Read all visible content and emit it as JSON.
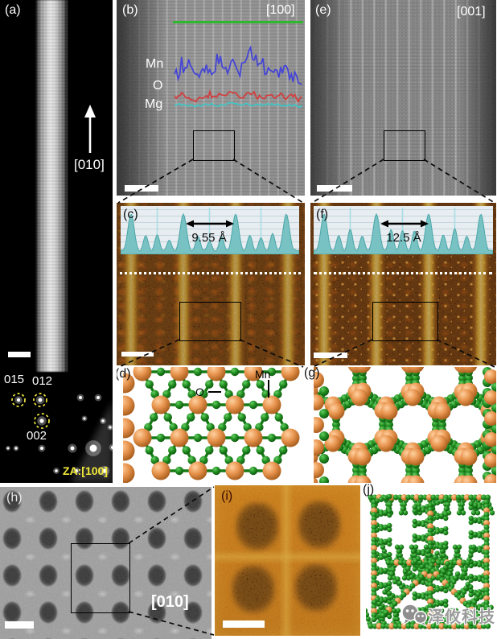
{
  "panels": {
    "a": {
      "label": "(a)",
      "growth_axis": "[010]",
      "diffraction": {
        "spot1": "015",
        "spot2": "012",
        "spot3": "002",
        "zone_axis": "ZA:[100]"
      }
    },
    "b": {
      "label": "(b)",
      "axis": "[100]",
      "traces": [
        {
          "label": "Mn",
          "color": "#4343d8"
        },
        {
          "label": "O",
          "color": "#d43b3b"
        },
        {
          "label": "Mg",
          "color": "#3fc6c6"
        }
      ]
    },
    "c": {
      "label": "(c)",
      "spacing": "9.55 Å"
    },
    "d": {
      "label": "(d)",
      "mn_label": "Mn",
      "o_label": "O"
    },
    "e": {
      "label": "(e)",
      "axis": "[001]"
    },
    "f": {
      "label": "(f)",
      "spacing": "12.5 Å"
    },
    "g": {
      "label": "(g)"
    },
    "h": {
      "label": "(h)",
      "axis": "[010]"
    },
    "i": {
      "label": "(i)"
    },
    "j": {
      "label": "(j)"
    }
  },
  "watermark": {
    "text": "泽攸科技"
  },
  "colors": {
    "mn_atom": "#e08a4a",
    "o_atom": "#1e8a1e",
    "eds_marker_line": "#2eb82e",
    "annotation_yellow": "#f2ea3a",
    "profile_fill": "#79c2c4",
    "profile_stroke": "#4ba6a8",
    "profile_guide": "#a9dde6"
  }
}
